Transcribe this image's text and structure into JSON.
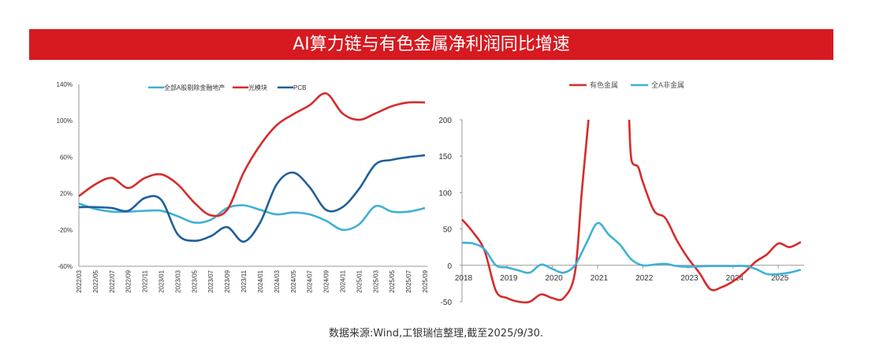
{
  "title": "AI算力链与有色金属净利润同比增速",
  "source": "数据来源:Wind,工银瑞信整理,截至2025/9/30.",
  "chart_data": [
    {
      "type": "line",
      "ylim": [
        -60,
        140
      ],
      "yticks": [
        140,
        100,
        60,
        20,
        -20,
        -60
      ],
      "ytick_format": "percent",
      "categories": [
        "2022/03",
        "2022/05",
        "2022/07",
        "2022/09",
        "2022/11",
        "2023/01",
        "2023/03",
        "2023/05",
        "2023/07",
        "2023/09",
        "2023/11",
        "2024/01",
        "2024/03",
        "2024/05",
        "2024/07",
        "2024/09",
        "2024/11",
        "2025/01",
        "2025/03",
        "2025/05",
        "2025/07",
        "2025/09"
      ],
      "legend_position": "top",
      "series": [
        {
          "name": "全部A股剔除金融地产",
          "color": "#3fb0d6",
          "values": [
            9,
            3,
            0,
            0,
            1,
            1,
            -5,
            -12,
            -9,
            4,
            7,
            2,
            -3,
            -1,
            -3,
            -10,
            -20,
            -14,
            6,
            0,
            0,
            4
          ]
        },
        {
          "name": "光模块",
          "color": "#d62b2b",
          "values": [
            17,
            30,
            37,
            26,
            37,
            41,
            30,
            10,
            -4,
            2,
            43,
            73,
            95,
            107,
            117,
            130,
            108,
            101,
            108,
            116,
            120,
            120
          ]
        },
        {
          "name": "PCB",
          "color": "#1f5f9a",
          "values": [
            5,
            5,
            4,
            1,
            15,
            13,
            -25,
            -32,
            -27,
            -17,
            -33,
            -12,
            30,
            43,
            27,
            2,
            5,
            25,
            52,
            57,
            60,
            62
          ]
        }
      ]
    },
    {
      "type": "line",
      "ylim": [
        -50,
        200
      ],
      "yticks": [
        200,
        150,
        100,
        50,
        0,
        -50
      ],
      "xticks": [
        "2018",
        "2019",
        "2020",
        "2021",
        "2022",
        "2023",
        "2024",
        "2025"
      ],
      "legend_position": "top",
      "series": [
        {
          "name": "有色金属",
          "color": "#d62b2b",
          "x": [
            2018,
            2018.25,
            2018.5,
            2018.75,
            2019,
            2019.25,
            2019.5,
            2019.75,
            2020,
            2020.25,
            2020.5,
            2020.65,
            2020.8,
            null,
            2021.7,
            2021.75,
            2021.9,
            2022,
            2022.25,
            2022.5,
            2022.75,
            2023,
            2023.25,
            2023.5,
            2023.75,
            2024,
            2024.25,
            2024.5,
            2024.75,
            2025,
            2025.25,
            2025.5
          ],
          "values": [
            63,
            45,
            20,
            -35,
            -45,
            -50,
            -50,
            -40,
            -45,
            -45,
            -10,
            100,
            200,
            null,
            200,
            145,
            135,
            115,
            75,
            65,
            35,
            10,
            -10,
            -33,
            -30,
            -22,
            -10,
            5,
            15,
            30,
            25,
            32
          ]
        },
        {
          "name": "全A非金属",
          "color": "#3fb0d6",
          "x": [
            2018,
            2018.25,
            2018.5,
            2018.75,
            2019,
            2019.25,
            2019.5,
            2019.75,
            2020,
            2020.25,
            2020.5,
            2020.75,
            2021,
            2021.25,
            2021.5,
            2021.75,
            2022,
            2022.25,
            2022.5,
            2022.75,
            2023,
            2023.5,
            2024,
            2024.25,
            2024.5,
            2024.75,
            2025,
            2025.25,
            2025.5
          ],
          "values": [
            31,
            30,
            22,
            0,
            -3,
            -7,
            -10,
            1,
            -5,
            -10,
            0,
            30,
            58,
            42,
            28,
            8,
            0,
            1,
            2,
            -1,
            -2,
            -1,
            -1,
            -1,
            -5,
            -12,
            -12,
            -10,
            -6
          ]
        }
      ]
    }
  ]
}
